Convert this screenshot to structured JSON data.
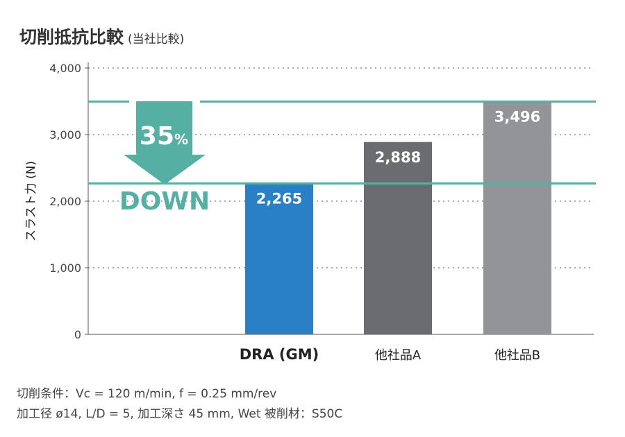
{
  "chart_data": {
    "type": "bar",
    "title": "切削抵抗比較",
    "subtitle": "(当社比較)",
    "ylabel": "スラスト力 (N)",
    "xlabel": "",
    "ylim": [
      0,
      4000
    ],
    "yticks": [
      "0",
      "1,000",
      "2,000",
      "3,000",
      "4,000"
    ],
    "ytick_values": [
      0,
      1000,
      2000,
      3000,
      4000
    ],
    "grid": true,
    "categories": [
      "DRA (GM)",
      "他社品A",
      "他社品B"
    ],
    "values": [
      2265,
      2888,
      3496
    ],
    "value_labels": [
      "2,265",
      "2,888",
      "3,496"
    ],
    "colors": [
      "#2a80c6",
      "#6b6c70",
      "#939497"
    ],
    "reference_lines": [
      3496,
      2265
    ],
    "annotation": {
      "percent": "35",
      "percent_sign": "%",
      "word": "DOWN",
      "color": "#55b0a3"
    }
  },
  "conditions": {
    "line1": "切削条件：Vc = 120 m/min, f = 0.25 mm/rev",
    "line2": "加工径 ø14, L/D = 5, 加工深さ 45 mm, Wet  被削材：S50C"
  }
}
